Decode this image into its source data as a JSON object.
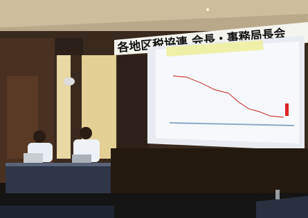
{
  "banner": {
    "text": "各地区税協連 会長・事務局長会"
  }
}
